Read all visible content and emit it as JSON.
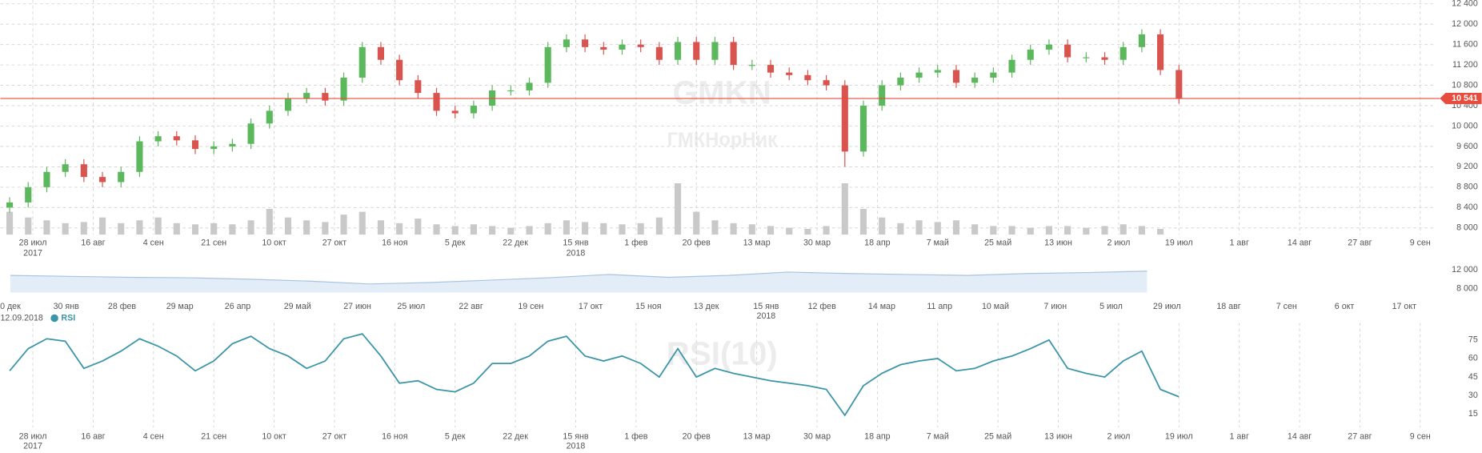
{
  "chart_data": [
    {
      "type": "candlestick",
      "watermark": "GMKN",
      "watermark_sub": "ГМКНорНик",
      "x": [
        -3,
        1,
        5,
        9,
        13,
        17,
        21,
        25,
        29,
        33,
        37,
        41,
        45,
        49,
        53,
        57,
        61,
        65,
        69,
        73,
        77,
        81,
        85,
        89,
        93,
        97,
        101,
        105,
        109,
        113,
        117,
        121,
        125,
        129,
        133,
        137,
        141,
        145,
        149,
        153,
        157,
        161,
        165,
        169,
        173,
        177,
        181,
        185,
        189,
        193,
        197,
        201,
        205,
        209,
        213,
        217,
        221,
        225,
        229,
        233,
        237,
        241,
        245,
        249
      ],
      "open": [
        8400,
        8500,
        8800,
        9100,
        9250,
        9000,
        8900,
        9100,
        9700,
        9800,
        9720,
        9550,
        9600,
        9650,
        10050,
        10300,
        10550,
        10650,
        10500,
        10950,
        11550,
        11300,
        10900,
        10650,
        10300,
        10250,
        10400,
        10700,
        10700,
        10850,
        11550,
        11700,
        11550,
        11500,
        11600,
        11550,
        11300,
        11650,
        11300,
        11650,
        11200,
        11200,
        11050,
        11000,
        10900,
        10800,
        9500,
        10400,
        10800,
        10950,
        11050,
        11100,
        10850,
        10950,
        11050,
        11300,
        11500,
        11600,
        11350,
        11350,
        11300,
        11550,
        11800,
        11100
      ],
      "high": [
        8600,
        8900,
        9200,
        9350,
        9350,
        9100,
        9200,
        9800,
        9900,
        9900,
        9820,
        9700,
        9750,
        10150,
        10400,
        10650,
        10750,
        10750,
        11050,
        11650,
        11650,
        11400,
        11000,
        10750,
        10400,
        10500,
        10800,
        10800,
        10950,
        11650,
        11800,
        11800,
        11650,
        11700,
        11700,
        11650,
        11750,
        11750,
        11750,
        11750,
        11300,
        11300,
        11150,
        11100,
        11000,
        10900,
        10500,
        10900,
        11050,
        11150,
        11200,
        11200,
        11050,
        11150,
        11400,
        11600,
        11700,
        11700,
        11450,
        11450,
        11650,
        11900,
        11900,
        11200
      ],
      "low": [
        8300,
        8400,
        8700,
        9000,
        8900,
        8800,
        8800,
        9000,
        9600,
        9620,
        9450,
        9450,
        9500,
        9550,
        9950,
        10200,
        10450,
        10400,
        10400,
        10850,
        11200,
        10800,
        10550,
        10200,
        10150,
        10150,
        10300,
        10600,
        10600,
        10750,
        11450,
        11450,
        11400,
        11400,
        11450,
        11200,
        11200,
        11200,
        11200,
        11100,
        11100,
        10950,
        10900,
        10800,
        10700,
        9200,
        9400,
        10300,
        10700,
        10850,
        10950,
        10750,
        10750,
        10850,
        10950,
        11200,
        11400,
        11250,
        11250,
        11200,
        11200,
        11450,
        11000,
        10441
      ],
      "close": [
        8500,
        8800,
        9100,
        9250,
        9000,
        8900,
        9100,
        9700,
        9800,
        9720,
        9550,
        9600,
        9650,
        10050,
        10300,
        10550,
        10650,
        10500,
        10950,
        11550,
        11300,
        10900,
        10650,
        10300,
        10250,
        10400,
        10700,
        10700,
        10850,
        11550,
        11700,
        11550,
        11500,
        11600,
        11550,
        11300,
        11650,
        11300,
        11650,
        11200,
        11200,
        11050,
        11000,
        10900,
        10800,
        9500,
        10400,
        10800,
        10950,
        11050,
        11100,
        10850,
        10950,
        11050,
        11300,
        11500,
        11600,
        11350,
        11350,
        11300,
        11550,
        11800,
        11100,
        10541
      ],
      "volume": [
        40,
        30,
        25,
        20,
        22,
        30,
        20,
        25,
        30,
        20,
        18,
        20,
        18,
        25,
        45,
        30,
        25,
        22,
        35,
        40,
        25,
        20,
        28,
        18,
        15,
        18,
        15,
        12,
        15,
        20,
        25,
        22,
        20,
        18,
        20,
        30,
        90,
        40,
        25,
        20,
        18,
        15,
        12,
        10,
        15,
        90,
        45,
        30,
        20,
        25,
        22,
        25,
        18,
        15,
        15,
        12,
        15,
        15,
        12,
        15,
        18,
        15,
        10,
        0
      ],
      "volume_ylim": [
        0,
        100
      ],
      "up_color": "#5cb85c",
      "down_color": "#d9534f",
      "volume_color": "#c9c9c9",
      "xlim": [
        -5,
        304
      ],
      "ylim": [
        8000,
        12400
      ],
      "xticks": [
        {
          "value": 2,
          "label": "28 июл"
        },
        {
          "value": 15,
          "label": "16 авг"
        },
        {
          "value": 28,
          "label": "4 сен"
        },
        {
          "value": 41,
          "label": "21 сен"
        },
        {
          "value": 54,
          "label": "10 окт"
        },
        {
          "value": 67,
          "label": "27 окт"
        },
        {
          "value": 80,
          "label": "16 ноя"
        },
        {
          "value": 93,
          "label": "5 дек"
        },
        {
          "value": 106,
          "label": "22 дек"
        },
        {
          "value": 119,
          "label": "15 янв"
        },
        {
          "value": 132,
          "label": "1 фев"
        },
        {
          "value": 145,
          "label": "20 фев"
        },
        {
          "value": 158,
          "label": "13 мар"
        },
        {
          "value": 171,
          "label": "30 мар"
        },
        {
          "value": 184,
          "label": "18 апр"
        },
        {
          "value": 197,
          "label": "7 май"
        },
        {
          "value": 210,
          "label": "25 май"
        },
        {
          "value": 223,
          "label": "13 июн"
        },
        {
          "value": 236,
          "label": "2 июл"
        },
        {
          "value": 249,
          "label": "19 июл"
        },
        {
          "value": 262,
          "label": "1 авг"
        },
        {
          "value": 275,
          "label": "14 авг"
        },
        {
          "value": 288,
          "label": "27 авг"
        },
        {
          "value": 301,
          "label": "9 сен"
        }
      ],
      "year_labels": [
        {
          "value": 2,
          "label": "2017"
        },
        {
          "value": 119,
          "label": "2018"
        }
      ],
      "yticks": [
        {
          "value": 8000,
          "label": "8 000"
        },
        {
          "value": 8400,
          "label": "8 400"
        },
        {
          "value": 8800,
          "label": "8 800"
        },
        {
          "value": 9200,
          "label": "9 200"
        },
        {
          "value": 9600,
          "label": "9 600"
        },
        {
          "value": 10000,
          "label": "10 000"
        },
        {
          "value": 10400,
          "label": "10 400"
        },
        {
          "value": 10800,
          "label": "10 800"
        },
        {
          "value": 11200,
          "label": "11 200"
        },
        {
          "value": 11600,
          "label": "11 600"
        },
        {
          "value": 12000,
          "label": "12 000"
        },
        {
          "value": 12400,
          "label": "12 400"
        }
      ],
      "last_price": {
        "value": 10541,
        "label": "10 541"
      },
      "last_price_color": "#e84c3d",
      "grid": true
    },
    {
      "type": "area",
      "color": "#e3edf8",
      "line_color": "#a9c4e0",
      "x": [
        0,
        30,
        60,
        90,
        120,
        150,
        180,
        210,
        240,
        270,
        300,
        330,
        360,
        390,
        420,
        450,
        480,
        510,
        540,
        570
      ],
      "values": [
        10800,
        10600,
        10400,
        10300,
        10000,
        9600,
        9000,
        9300,
        9800,
        10300,
        11000,
        10400,
        10800,
        11500,
        11200,
        11000,
        10800,
        11200,
        11400,
        11700
      ],
      "xlim": [
        -5,
        714
      ],
      "ylim": [
        7200,
        13200
      ],
      "yticks": [
        {
          "value": 8000,
          "label": "8 000"
        },
        {
          "value": 12000,
          "label": "12 000"
        }
      ],
      "xticks": [
        {
          "value": 0,
          "label": "0 дек"
        },
        {
          "value": 28,
          "label": "30 янв"
        },
        {
          "value": 56,
          "label": "28 фев"
        },
        {
          "value": 85,
          "label": "29 мар"
        },
        {
          "value": 114,
          "label": "26 апр"
        },
        {
          "value": 144,
          "label": "29 май"
        },
        {
          "value": 174,
          "label": "27 июн"
        },
        {
          "value": 201,
          "label": "25 июл"
        },
        {
          "value": 231,
          "label": "22 авг"
        },
        {
          "value": 261,
          "label": "19 сен"
        },
        {
          "value": 291,
          "label": "17 окт"
        },
        {
          "value": 320,
          "label": "15 ноя"
        },
        {
          "value": 349,
          "label": "13 дек"
        },
        {
          "value": 379,
          "label": "15 янв"
        },
        {
          "value": 407,
          "label": "12 фев"
        },
        {
          "value": 437,
          "label": "14 мар"
        },
        {
          "value": 466,
          "label": "11 апр"
        },
        {
          "value": 494,
          "label": "10 май"
        },
        {
          "value": 524,
          "label": "7 июн"
        },
        {
          "value": 552,
          "label": "5 июл"
        },
        {
          "value": 580,
          "label": "29 июл"
        },
        {
          "value": 611,
          "label": "18 авг"
        },
        {
          "value": 640,
          "label": "7 сен"
        },
        {
          "value": 669,
          "label": "6 окт"
        },
        {
          "value": 699,
          "label": "17 окт"
        }
      ],
      "year_labels": [
        {
          "value": 379,
          "label": "2018"
        }
      ]
    },
    {
      "type": "line",
      "name": "RSI",
      "date_label": "12.09.2018",
      "watermark": "RSI(10)",
      "color": "#3b95a8",
      "values": [
        50,
        68,
        76,
        74,
        52,
        58,
        66,
        76,
        70,
        62,
        50,
        58,
        72,
        78,
        68,
        62,
        52,
        58,
        76,
        80,
        62,
        40,
        42,
        35,
        33,
        40,
        56,
        56,
        62,
        74,
        78,
        62,
        58,
        62,
        56,
        45,
        68,
        45,
        52,
        48,
        45,
        42,
        40,
        38,
        35,
        14,
        38,
        48,
        55,
        58,
        60,
        50,
        52,
        58,
        62,
        68,
        75,
        52,
        48,
        45,
        58,
        66,
        35,
        29
      ],
      "ylim": [
        5,
        85
      ],
      "yticks": [
        15,
        30,
        45,
        60,
        75
      ],
      "grid": true
    }
  ]
}
